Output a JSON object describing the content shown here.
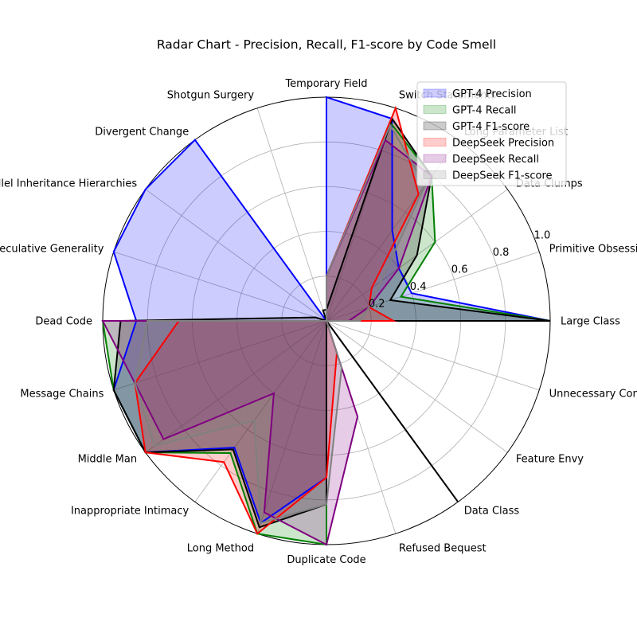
{
  "chart_data": {
    "type": "radar",
    "title": "Radar Chart - Precision, Recall, F1-score by Code Smell",
    "categories": [
      "Large Class",
      "Primitive Obsession",
      "Data Clumps",
      "Long Parameter List",
      "Switch Statements",
      "Temporary Field",
      "Shotgun Surgery",
      "Divergent Change",
      "Parallel Inheritance Hierarchies",
      "Speculative Generality",
      "Dead Code",
      "Message Chains",
      "Middle Man",
      "Inappropriate Intimacy",
      "Long Method",
      "Duplicate Code",
      "Refused Bequest",
      "Data Class",
      "Feature Envy",
      "Unnecessary Comments"
    ],
    "rticks": [
      "0.2",
      "0.4",
      "0.6",
      "0.8",
      "1.0"
    ],
    "rlim": [
      0,
      1.0
    ],
    "grid": true,
    "legend_position": "top-right",
    "series": [
      {
        "name": "GPT-4 Precision",
        "color": "#0000ff",
        "values": [
          1.0,
          0.4,
          0.4,
          0.5,
          0.95,
          1.0,
          0.0,
          1.0,
          1.0,
          1.0,
          0.85,
          1.0,
          1.0,
          0.7,
          0.95,
          0.7,
          0.0,
          0.0,
          0.0,
          0.0
        ]
      },
      {
        "name": "GPT-4 Recall",
        "color": "#008000",
        "values": [
          1.0,
          0.35,
          0.6,
          0.8,
          0.93,
          0.2,
          0.0,
          0.0,
          0.0,
          0.0,
          1.0,
          1.0,
          1.0,
          0.73,
          1.0,
          1.0,
          0.0,
          0.0,
          0.0,
          0.0
        ]
      },
      {
        "name": "GPT-4 F1-score",
        "color": "#000000",
        "values": [
          1.0,
          0.3,
          0.5,
          0.8,
          0.95,
          0.05,
          0.05,
          0.0,
          0.0,
          0.05,
          0.92,
          1.0,
          1.0,
          0.71,
          0.97,
          0.82,
          0.0,
          1.0,
          0.0,
          0.0
        ]
      },
      {
        "name": "DeepSeek Precision",
        "color": "#ff0000",
        "values": [
          0.3,
          0.2,
          0.25,
          0.7,
          1.0,
          0.2,
          0.0,
          0.0,
          0.0,
          0.0,
          0.66,
          0.9,
          1.0,
          0.78,
          1.0,
          0.7,
          0.15,
          0.0,
          0.0,
          0.0
        ]
      },
      {
        "name": "DeepSeek Recall",
        "color": "#800080",
        "values": [
          0.1,
          0.2,
          0.4,
          0.8,
          0.85,
          0.2,
          0.0,
          0.0,
          0.0,
          0.0,
          1.0,
          0.9,
          0.9,
          0.4,
          0.9,
          1.0,
          0.45,
          0.0,
          0.0,
          0.0
        ]
      },
      {
        "name": "DeepSeek F1-score",
        "color": "#808080",
        "values": [
          0.15,
          0.2,
          0.3,
          0.75,
          0.92,
          0.2,
          0.0,
          0.0,
          0.0,
          0.0,
          0.8,
          0.9,
          0.95,
          0.55,
          0.95,
          0.82,
          0.22,
          0.0,
          0.0,
          0.0
        ]
      }
    ]
  }
}
